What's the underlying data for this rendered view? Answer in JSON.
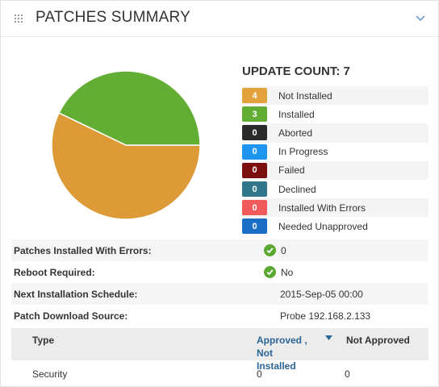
{
  "header": {
    "title": "PATCHES SUMMARY"
  },
  "update_count": {
    "title": "UPDATE COUNT: 7"
  },
  "legend": [
    {
      "count": "4",
      "label": "Not Installed",
      "color": "#e3a23c"
    },
    {
      "count": "3",
      "label": "Installed",
      "color": "#62ad34"
    },
    {
      "count": "0",
      "label": "Aborted",
      "color": "#2b2b2b"
    },
    {
      "count": "0",
      "label": "In Progress",
      "color": "#1e96f0"
    },
    {
      "count": "0",
      "label": "Failed",
      "color": "#7b0e0e"
    },
    {
      "count": "0",
      "label": "Declined",
      "color": "#31768a"
    },
    {
      "count": "0",
      "label": "Installed With Errors",
      "color": "#f05a5a"
    },
    {
      "count": "0",
      "label": "Needed Unapproved",
      "color": "#1a6ec6"
    }
  ],
  "pie": {
    "slices": [
      {
        "label": "Not Installed",
        "value": 4,
        "color": "#dd9a36"
      },
      {
        "label": "Installed",
        "value": 3,
        "color": "#62ad34"
      }
    ]
  },
  "details": {
    "patches_installed_with_errors": {
      "label": "Patches Installed With Errors:",
      "value": "0"
    },
    "reboot_required": {
      "label": "Reboot Required:",
      "value": "No"
    },
    "next_installation_schedule": {
      "label": "Next Installation Schedule:",
      "value": "2015-Sep-05 00:00"
    },
    "patch_download_source": {
      "label": "Patch Download Source:",
      "value": "Probe 192.168.2.133"
    }
  },
  "table": {
    "columns": {
      "type": "Type",
      "approved_line1": "Approved ,",
      "approved_line2": "Not Installed",
      "not_approved": "Not Approved"
    },
    "rows": [
      {
        "type": "Security",
        "approved_not_installed": "0",
        "not_approved": "0"
      }
    ]
  }
}
